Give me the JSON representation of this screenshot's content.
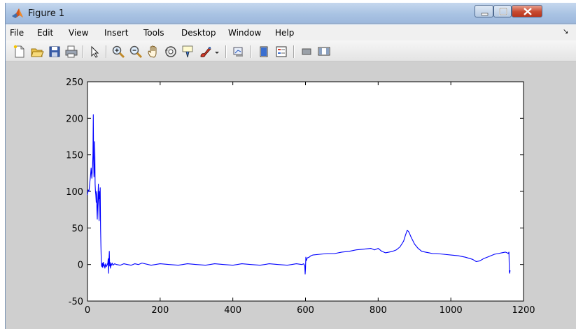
{
  "window": {
    "title": "Figure 1"
  },
  "menu": {
    "items": [
      "File",
      "Edit",
      "View",
      "Insert",
      "Tools",
      "Desktop",
      "Window",
      "Help"
    ]
  },
  "toolbar": {
    "tools": [
      "new-figure-icon",
      "open-file-icon",
      "save-icon",
      "print-icon",
      "edit-plot-arrow-icon",
      "zoom-in-icon",
      "zoom-out-icon",
      "pan-hand-icon",
      "rotate-3d-icon",
      "data-cursor-icon",
      "brush-icon",
      "link-plot-icon",
      "colorbar-icon",
      "legend-icon",
      "hide-plot-tools-icon",
      "show-plot-tools-icon"
    ]
  },
  "chart_data": {
    "type": "line",
    "title": "",
    "xlabel": "",
    "ylabel": "",
    "xlim": [
      0,
      1200
    ],
    "ylim": [
      -50,
      250
    ],
    "xticks": [
      0,
      200,
      400,
      600,
      800,
      1000,
      1200
    ],
    "yticks": [
      -50,
      0,
      50,
      100,
      150,
      200,
      250
    ],
    "grid": false,
    "series": [
      {
        "color": "#0000ff",
        "x": [
          0,
          2,
          4,
          6,
          8,
          10,
          12,
          14,
          15,
          16,
          17,
          18,
          19,
          20,
          21,
          22,
          23,
          24,
          25,
          26,
          27,
          28,
          29,
          30,
          31,
          32,
          33,
          34,
          35,
          36,
          37,
          38,
          39,
          40,
          41,
          42,
          43,
          44,
          45,
          46,
          48,
          50,
          52,
          54,
          56,
          57,
          58,
          59,
          60,
          61,
          62,
          63,
          64,
          65,
          66,
          68,
          70,
          75,
          80,
          90,
          100,
          110,
          120,
          130,
          140,
          150,
          175,
          200,
          225,
          250,
          275,
          300,
          325,
          350,
          375,
          400,
          425,
          450,
          475,
          500,
          525,
          550,
          575,
          590,
          595,
          598,
          599,
          600,
          601,
          602,
          605,
          610,
          615,
          620,
          640,
          660,
          680,
          700,
          720,
          740,
          760,
          780,
          790,
          800,
          810,
          820,
          830,
          840,
          850,
          860,
          870,
          875,
          880,
          885,
          890,
          895,
          900,
          910,
          920,
          930,
          940,
          950,
          960,
          980,
          1000,
          1020,
          1040,
          1060,
          1070,
          1080,
          1090,
          1100,
          1110,
          1120,
          1130,
          1140,
          1150,
          1155,
          1158,
          1160,
          1161,
          1162,
          1163
        ],
        "y": [
          95,
          102,
          100,
          110,
          120,
          132,
          118,
          135,
          150,
          205,
          140,
          120,
          130,
          168,
          110,
          100,
          95,
          85,
          100,
          75,
          62,
          80,
          95,
          110,
          85,
          60,
          100,
          90,
          105,
          50,
          25,
          5,
          -2,
          -3,
          2,
          -4,
          0,
          3,
          -2,
          0,
          -5,
          1,
          -3,
          -1,
          2,
          8,
          -12,
          4,
          18,
          -2,
          3,
          -5,
          1,
          -2,
          0,
          2,
          -1,
          1,
          0,
          -1,
          1,
          0,
          -1,
          1,
          0,
          2,
          -1,
          1,
          0,
          -1,
          1,
          0,
          -1,
          1,
          0,
          -1,
          1,
          0,
          -1,
          1,
          0,
          -1,
          1,
          0,
          1,
          -2,
          -13,
          -6,
          10,
          5,
          9,
          10,
          12,
          13,
          14,
          15,
          15,
          17,
          18,
          20,
          21,
          22,
          20,
          22,
          18,
          16,
          17,
          18,
          20,
          24,
          32,
          40,
          47,
          44,
          38,
          33,
          28,
          22,
          18,
          17,
          16,
          15,
          15,
          14,
          13,
          12,
          10,
          7,
          4,
          5,
          8,
          10,
          12,
          14,
          15,
          16,
          17,
          16,
          15,
          17,
          -10,
          -12,
          -8
        ]
      }
    ]
  }
}
